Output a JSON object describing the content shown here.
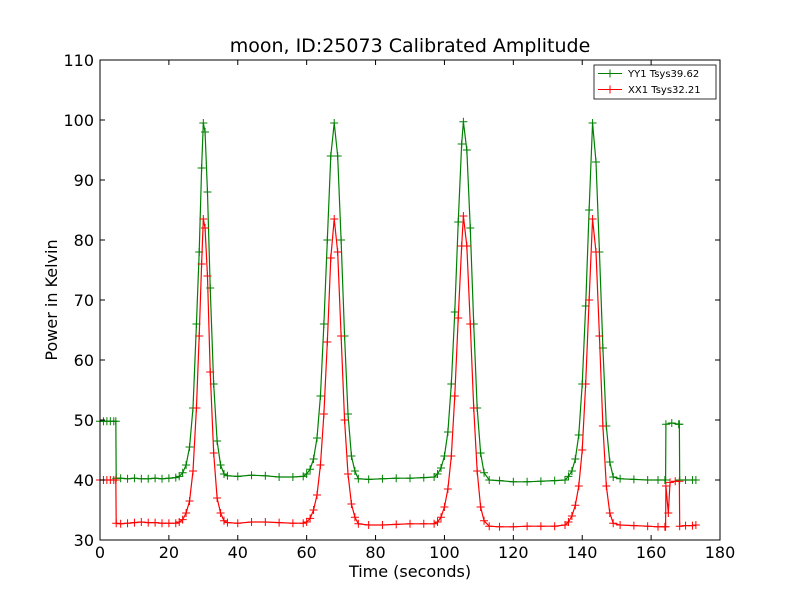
{
  "chart_data": {
    "type": "line",
    "title": "moon, ID:25073 Calibrated Amplitude",
    "xlabel": "Time (seconds)",
    "ylabel": "Power in Kelvin",
    "xlim": [
      0,
      180
    ],
    "ylim": [
      30,
      110
    ],
    "xticks": [
      0,
      20,
      40,
      60,
      80,
      100,
      120,
      140,
      160,
      180
    ],
    "yticks": [
      30,
      40,
      50,
      60,
      70,
      80,
      90,
      100,
      110
    ],
    "grid": false,
    "legend_position": "top-right",
    "marker": "+",
    "series": [
      {
        "name": "YY1 Tsys39.62",
        "color": "#008000",
        "points": [
          [
            0.0,
            49.8
          ],
          [
            1.0,
            49.8
          ],
          [
            2.0,
            49.8
          ],
          [
            3.0,
            49.8
          ],
          [
            4.0,
            49.8
          ],
          [
            4.6,
            49.8
          ],
          [
            4.7,
            40.3
          ],
          [
            6.0,
            40.3
          ],
          [
            8.0,
            40.2
          ],
          [
            10.0,
            40.3
          ],
          [
            12.0,
            40.2
          ],
          [
            14.0,
            40.2
          ],
          [
            16.0,
            40.3
          ],
          [
            18.0,
            40.2
          ],
          [
            20.0,
            40.3
          ],
          [
            22.0,
            40.4
          ],
          [
            23.0,
            40.6
          ],
          [
            24.0,
            41.2
          ],
          [
            25.0,
            42.5
          ],
          [
            26.0,
            45.5
          ],
          [
            27.0,
            52.0
          ],
          [
            28.0,
            66.0
          ],
          [
            28.8,
            78.0
          ],
          [
            29.5,
            92.0
          ],
          [
            30.0,
            99.5
          ],
          [
            30.5,
            98.0
          ],
          [
            31.2,
            88.0
          ],
          [
            32.0,
            72.0
          ],
          [
            33.0,
            56.0
          ],
          [
            34.0,
            46.5
          ],
          [
            35.0,
            42.5
          ],
          [
            36.0,
            41.0
          ],
          [
            37.0,
            40.7
          ],
          [
            40.0,
            40.6
          ],
          [
            44.0,
            40.8
          ],
          [
            48.0,
            40.7
          ],
          [
            52.0,
            40.5
          ],
          [
            56.0,
            40.5
          ],
          [
            59.0,
            40.6
          ],
          [
            60.0,
            41.0
          ],
          [
            61.0,
            41.8
          ],
          [
            62.0,
            43.5
          ],
          [
            63.0,
            47.0
          ],
          [
            64.0,
            54.0
          ],
          [
            65.0,
            66.0
          ],
          [
            66.0,
            80.0
          ],
          [
            67.0,
            94.0
          ],
          [
            68.0,
            99.5
          ],
          [
            69.0,
            94.0
          ],
          [
            70.0,
            80.0
          ],
          [
            71.0,
            64.0
          ],
          [
            72.0,
            51.0
          ],
          [
            73.0,
            44.0
          ],
          [
            74.0,
            41.5
          ],
          [
            75.0,
            40.2
          ],
          [
            78.0,
            40.1
          ],
          [
            82.0,
            40.2
          ],
          [
            86.0,
            40.3
          ],
          [
            90.0,
            40.3
          ],
          [
            94.0,
            40.4
          ],
          [
            97.0,
            40.5
          ],
          [
            98.0,
            41.0
          ],
          [
            99.0,
            42.0
          ],
          [
            100.0,
            44.0
          ],
          [
            101.0,
            48.0
          ],
          [
            102.0,
            56.0
          ],
          [
            103.0,
            68.0
          ],
          [
            104.0,
            83.0
          ],
          [
            105.0,
            96.0
          ],
          [
            105.5,
            99.7
          ],
          [
            106.5,
            95.0
          ],
          [
            107.5,
            82.0
          ],
          [
            108.5,
            66.0
          ],
          [
            109.5,
            52.0
          ],
          [
            110.5,
            44.5
          ],
          [
            111.5,
            41.2
          ],
          [
            113.0,
            40.0
          ],
          [
            116.0,
            39.9
          ],
          [
            120.0,
            39.7
          ],
          [
            124.0,
            39.7
          ],
          [
            128.0,
            39.8
          ],
          [
            132.0,
            39.9
          ],
          [
            135.0,
            40.0
          ],
          [
            136.0,
            40.6
          ],
          [
            137.0,
            41.5
          ],
          [
            138.0,
            43.5
          ],
          [
            139.0,
            47.5
          ],
          [
            140.0,
            56.0
          ],
          [
            141.0,
            69.0
          ],
          [
            142.0,
            85.0
          ],
          [
            143.0,
            99.5
          ],
          [
            144.0,
            93.0
          ],
          [
            145.0,
            78.0
          ],
          [
            146.0,
            62.0
          ],
          [
            147.0,
            49.0
          ],
          [
            148.0,
            43.0
          ],
          [
            149.0,
            40.5
          ],
          [
            151.0,
            40.2
          ],
          [
            155.0,
            40.1
          ],
          [
            159.0,
            40.0
          ],
          [
            162.0,
            40.0
          ],
          [
            164.0,
            40.0
          ],
          [
            164.2,
            40.0
          ],
          [
            164.3,
            49.3
          ],
          [
            166.0,
            49.5
          ],
          [
            168.0,
            49.3
          ],
          [
            168.2,
            49.3
          ],
          [
            168.3,
            40.0
          ],
          [
            170.0,
            40.0
          ],
          [
            172.0,
            40.0
          ],
          [
            173.0,
            40.0
          ]
        ]
      },
      {
        "name": "XX1 Tsys32.21",
        "color": "#ff0000",
        "points": [
          [
            0.0,
            40.0
          ],
          [
            1.0,
            40.0
          ],
          [
            2.0,
            40.0
          ],
          [
            3.0,
            40.0
          ],
          [
            4.0,
            40.0
          ],
          [
            4.6,
            40.0
          ],
          [
            4.7,
            32.8
          ],
          [
            6.0,
            32.7
          ],
          [
            8.0,
            32.8
          ],
          [
            10.0,
            32.9
          ],
          [
            12.0,
            33.0
          ],
          [
            14.0,
            32.9
          ],
          [
            16.0,
            32.9
          ],
          [
            18.0,
            32.8
          ],
          [
            20.0,
            32.8
          ],
          [
            22.0,
            32.8
          ],
          [
            23.0,
            33.0
          ],
          [
            24.0,
            33.4
          ],
          [
            25.0,
            34.5
          ],
          [
            26.0,
            36.5
          ],
          [
            27.0,
            41.5
          ],
          [
            28.0,
            52.0
          ],
          [
            28.8,
            64.0
          ],
          [
            29.5,
            76.0
          ],
          [
            30.0,
            83.5
          ],
          [
            30.5,
            82.0
          ],
          [
            31.2,
            74.0
          ],
          [
            32.0,
            58.0
          ],
          [
            33.0,
            44.5
          ],
          [
            34.0,
            37.0
          ],
          [
            35.0,
            34.5
          ],
          [
            36.0,
            33.2
          ],
          [
            37.0,
            32.9
          ],
          [
            40.0,
            32.8
          ],
          [
            44.0,
            33.0
          ],
          [
            48.0,
            33.0
          ],
          [
            52.0,
            32.9
          ],
          [
            56.0,
            32.8
          ],
          [
            59.0,
            32.8
          ],
          [
            60.0,
            33.0
          ],
          [
            61.0,
            33.6
          ],
          [
            62.0,
            35.0
          ],
          [
            63.0,
            37.5
          ],
          [
            64.0,
            42.5
          ],
          [
            65.0,
            51.0
          ],
          [
            66.0,
            63.0
          ],
          [
            67.0,
            77.0
          ],
          [
            68.0,
            83.5
          ],
          [
            69.0,
            78.0
          ],
          [
            70.0,
            64.0
          ],
          [
            71.0,
            50.0
          ],
          [
            72.0,
            41.0
          ],
          [
            73.0,
            36.0
          ],
          [
            74.0,
            33.8
          ],
          [
            75.0,
            32.7
          ],
          [
            78.0,
            32.5
          ],
          [
            82.0,
            32.5
          ],
          [
            86.0,
            32.6
          ],
          [
            90.0,
            32.7
          ],
          [
            94.0,
            32.7
          ],
          [
            97.0,
            32.7
          ],
          [
            98.0,
            33.0
          ],
          [
            99.0,
            33.8
          ],
          [
            100.0,
            35.5
          ],
          [
            101.0,
            38.5
          ],
          [
            102.0,
            44.0
          ],
          [
            103.0,
            54.0
          ],
          [
            104.0,
            67.0
          ],
          [
            105.0,
            79.0
          ],
          [
            105.5,
            84.0
          ],
          [
            106.5,
            79.0
          ],
          [
            107.5,
            66.0
          ],
          [
            108.5,
            52.0
          ],
          [
            109.5,
            41.5
          ],
          [
            110.5,
            35.5
          ],
          [
            111.5,
            33.2
          ],
          [
            113.0,
            32.3
          ],
          [
            116.0,
            32.2
          ],
          [
            120.0,
            32.2
          ],
          [
            124.0,
            32.3
          ],
          [
            128.0,
            32.3
          ],
          [
            132.0,
            32.3
          ],
          [
            135.0,
            32.5
          ],
          [
            136.0,
            33.0
          ],
          [
            137.0,
            34.0
          ],
          [
            138.0,
            35.8
          ],
          [
            139.0,
            39.0
          ],
          [
            140.0,
            45.0
          ],
          [
            141.0,
            56.0
          ],
          [
            142.0,
            70.0
          ],
          [
            143.0,
            83.5
          ],
          [
            144.0,
            78.0
          ],
          [
            145.0,
            64.0
          ],
          [
            146.0,
            49.0
          ],
          [
            147.0,
            39.0
          ],
          [
            148.0,
            34.5
          ],
          [
            149.0,
            32.8
          ],
          [
            151.0,
            32.5
          ],
          [
            155.0,
            32.4
          ],
          [
            159.0,
            32.3
          ],
          [
            162.0,
            32.2
          ],
          [
            164.0,
            32.2
          ],
          [
            164.2,
            32.2
          ],
          [
            164.3,
            39.0
          ],
          [
            165.0,
            34.5
          ],
          [
            165.5,
            39.6
          ],
          [
            167.0,
            39.8
          ],
          [
            168.2,
            39.8
          ],
          [
            168.3,
            32.3
          ],
          [
            170.0,
            32.4
          ],
          [
            172.0,
            32.4
          ],
          [
            173.0,
            32.5
          ]
        ]
      }
    ]
  }
}
